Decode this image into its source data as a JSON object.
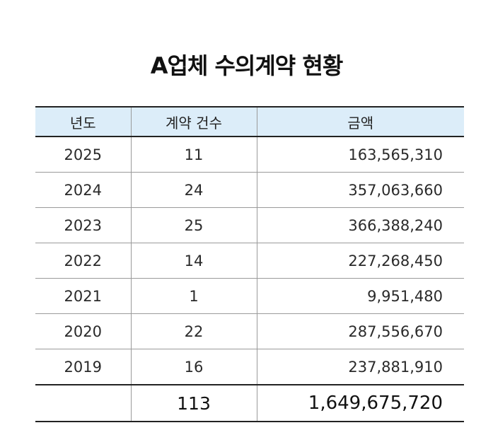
{
  "title": "A업체 수의계약 현황",
  "table": {
    "headers": [
      "년도",
      "계약 건수",
      "금액"
    ],
    "rows": [
      {
        "year": "2025",
        "count": "11",
        "amount": "163,565,310"
      },
      {
        "year": "2024",
        "count": "24",
        "amount": "357,063,660"
      },
      {
        "year": "2023",
        "count": "25",
        "amount": "366,388,240"
      },
      {
        "year": "2022",
        "count": "14",
        "amount": "227,268,450"
      },
      {
        "year": "2021",
        "count": "1",
        "amount": "9,951,480"
      },
      {
        "year": "2020",
        "count": "22",
        "amount": "287,556,670"
      },
      {
        "year": "2019",
        "count": "16",
        "amount": "237,881,910"
      }
    ],
    "total": {
      "label": "",
      "count": "113",
      "amount": "1,649,675,720"
    }
  },
  "colors": {
    "header_bg": "#dcedf9",
    "rule": "#222222",
    "grid": "#9a9a9a"
  }
}
